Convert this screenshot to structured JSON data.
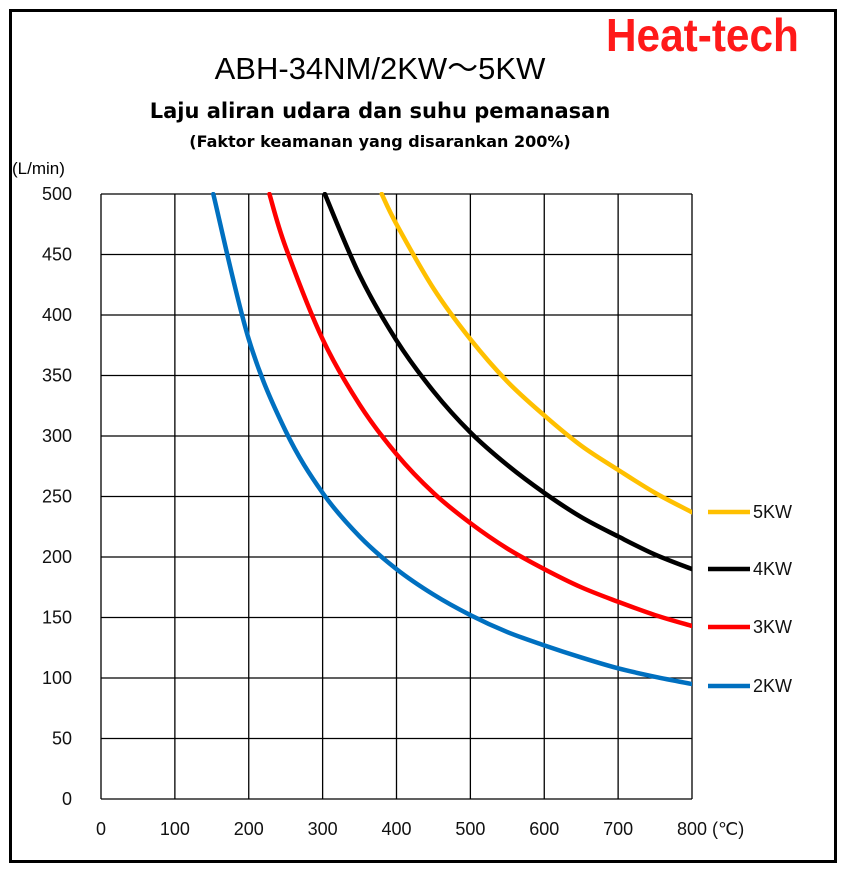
{
  "brand": {
    "text": "Heat-tech",
    "color": "#ff1a1a"
  },
  "chart_data": {
    "type": "line",
    "title": "ABH-34NM/2KW～5KW",
    "subtitle": "Laju aliran udara dan suhu pemanasan",
    "subtitle2": "(Faktor keamanan yang disarankan 200%)",
    "ylabel": "(L/min)",
    "xlabel": "(℃)",
    "xlim": [
      0,
      800
    ],
    "ylim": [
      0,
      500
    ],
    "x_ticks": [
      "0",
      "100",
      "200",
      "300",
      "400",
      "500",
      "600",
      "700",
      "800"
    ],
    "y_ticks": [
      "0",
      "50",
      "100",
      "150",
      "200",
      "250",
      "300",
      "350",
      "400",
      "450",
      "500"
    ],
    "grid": true,
    "series": [
      {
        "name": "5KW",
        "color": "#ffc000",
        "x": [
          380,
          400,
          450,
          500,
          550,
          600,
          650,
          700,
          750,
          800
        ],
        "y": [
          500,
          475,
          422,
          380,
          345,
          317,
          292,
          272,
          253,
          237
        ]
      },
      {
        "name": "4KW",
        "color": "#000000",
        "x": [
          303,
          350,
          400,
          450,
          500,
          550,
          600,
          650,
          700,
          750,
          800
        ],
        "y": [
          500,
          433,
          379,
          337,
          303,
          276,
          253,
          233,
          217,
          202,
          190
        ]
      },
      {
        "name": "3KW",
        "color": "#ff0000",
        "x": [
          228,
          250,
          300,
          350,
          400,
          450,
          500,
          550,
          600,
          650,
          700,
          750,
          800
        ],
        "y": [
          500,
          456,
          380,
          326,
          285,
          253,
          228,
          207,
          190,
          175,
          163,
          152,
          143
        ]
      },
      {
        "name": "2KW",
        "color": "#0070c0",
        "x": [
          152,
          200,
          250,
          300,
          350,
          400,
          450,
          500,
          550,
          600,
          650,
          700,
          750,
          800
        ],
        "y": [
          500,
          380,
          304,
          253,
          217,
          190,
          169,
          152,
          138,
          127,
          117,
          108,
          101,
          95
        ]
      }
    ],
    "legend_order": [
      "5KW",
      "4KW",
      "3KW",
      "2KW"
    ]
  }
}
